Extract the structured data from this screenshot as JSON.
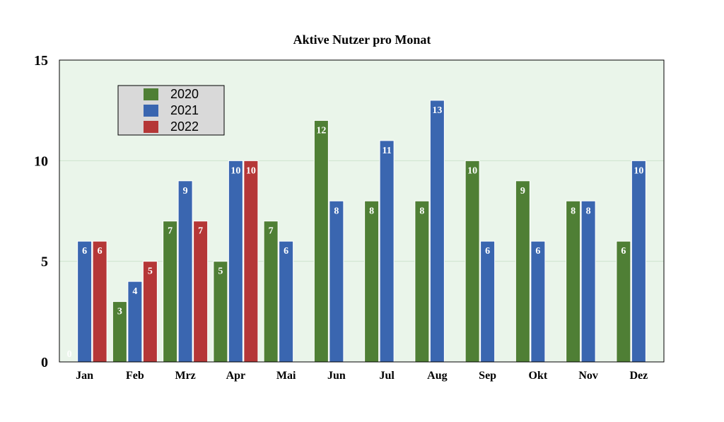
{
  "chart_data": {
    "type": "bar",
    "title": "Aktive Nutzer pro Monat",
    "xlabel": "",
    "ylabel": "",
    "categories": [
      "Jan",
      "Feb",
      "Mrz",
      "Apr",
      "Mai",
      "Jun",
      "Jul",
      "Aug",
      "Sep",
      "Okt",
      "Nov",
      "Dez"
    ],
    "series": [
      {
        "name": "2020",
        "color": "#4f7f35",
        "values": [
          0,
          3,
          7,
          5,
          7,
          12,
          8,
          8,
          10,
          9,
          8,
          6
        ]
      },
      {
        "name": "2021",
        "color": "#3a66b0",
        "values": [
          6,
          4,
          9,
          10,
          6,
          8,
          11,
          13,
          6,
          6,
          8,
          10
        ]
      },
      {
        "name": "2022",
        "color": "#b53737",
        "values": [
          6,
          5,
          7,
          10,
          null,
          null,
          null,
          null,
          null,
          null,
          null,
          null
        ]
      }
    ],
    "ylim": [
      0,
      15
    ],
    "yticks": [
      0,
      5,
      10,
      15
    ],
    "grid": true,
    "legend_position": "top-left",
    "plot_background": "#eaf5ea",
    "gridline_color": "#cfe3cf"
  }
}
